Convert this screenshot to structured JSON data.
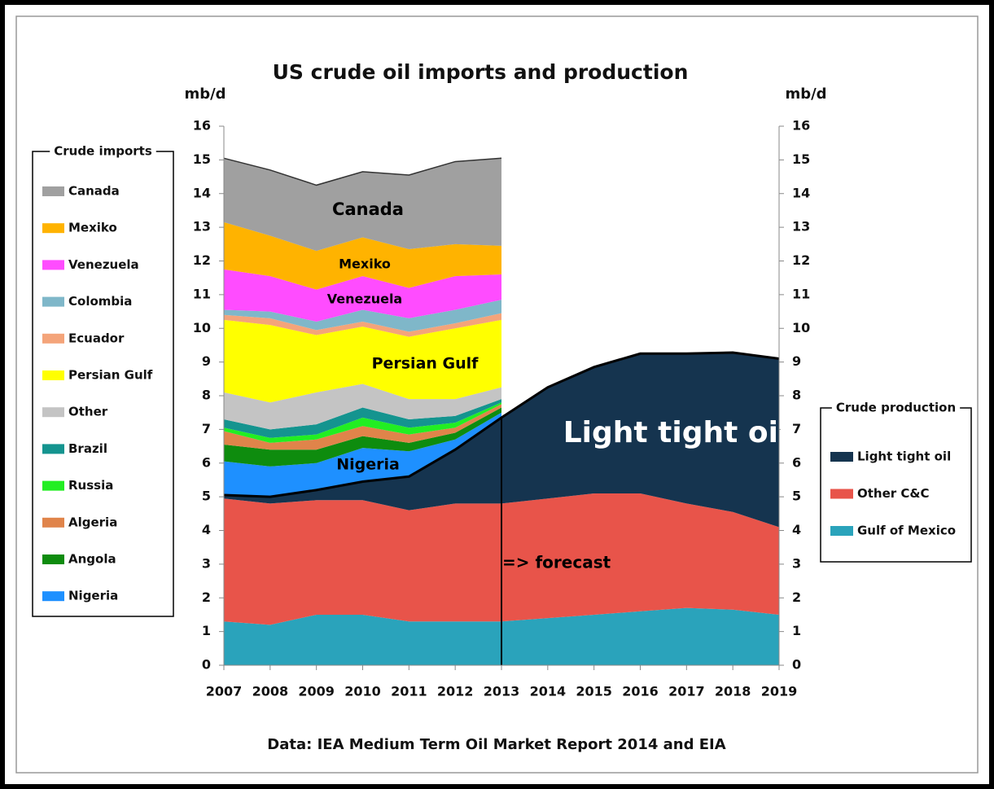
{
  "chart_data": {
    "type": "stacked-area",
    "title": "US crude oil imports and production",
    "y_axis_label": "mb/d",
    "y2_axis_label": "mb/d",
    "source": "Data: IEA Medium Term Oil Market Report 2014 and EIA",
    "categories": [
      "2007",
      "2008",
      "2009",
      "2010",
      "2011",
      "2012",
      "2013",
      "2014",
      "2015",
      "2016",
      "2017",
      "2018",
      "2019"
    ],
    "ylim": [
      0,
      16
    ],
    "yticks": [
      0,
      1,
      2,
      3,
      4,
      5,
      6,
      7,
      8,
      9,
      10,
      11,
      12,
      13,
      14,
      15,
      16
    ],
    "y2lim": [
      0,
      16
    ],
    "y2ticks": [
      0,
      1,
      2,
      3,
      4,
      5,
      6,
      7,
      8,
      9,
      10,
      11,
      12,
      13,
      14,
      15,
      16
    ],
    "series_groups": [
      {
        "title": "Crude production",
        "series": [
          {
            "name": "Gulf of Mexico",
            "color": "#2aa3bb",
            "values": [
              1.3,
              1.2,
              1.5,
              1.5,
              1.3,
              1.3,
              1.3,
              1.4,
              1.5,
              1.6,
              1.7,
              1.65,
              1.5
            ]
          },
          {
            "name": "Other C&C",
            "color": "#e8544a",
            "values": [
              3.65,
              3.6,
              3.4,
              3.4,
              3.3,
              3.5,
              3.5,
              3.55,
              3.6,
              3.5,
              3.1,
              2.9,
              2.6
            ]
          },
          {
            "name": "Light tight oil",
            "color": "#15344f",
            "values": [
              0.1,
              0.2,
              0.3,
              0.55,
              1.0,
              1.6,
              2.55,
              3.3,
              3.75,
              4.15,
              4.45,
              4.73,
              5.0
            ]
          }
        ]
      },
      {
        "title": "Crude imports",
        "series": [
          {
            "name": "Nigeria",
            "color": "#1e90ff",
            "values": [
              1.0,
              0.9,
              0.8,
              1.0,
              0.75,
              0.3,
              0.15,
              null,
              null,
              null,
              null,
              null,
              null
            ]
          },
          {
            "name": "Angola",
            "color": "#0e8c0e",
            "values": [
              0.5,
              0.5,
              0.4,
              0.35,
              0.25,
              0.2,
              0.15,
              null,
              null,
              null,
              null,
              null,
              null
            ]
          },
          {
            "name": "Algeria",
            "color": "#e0844a",
            "values": [
              0.4,
              0.2,
              0.3,
              0.3,
              0.25,
              0.15,
              0.1,
              null,
              null,
              null,
              null,
              null,
              null
            ]
          },
          {
            "name": "Russia",
            "color": "#22ee22",
            "values": [
              0.1,
              0.15,
              0.15,
              0.25,
              0.2,
              0.15,
              0.05,
              null,
              null,
              null,
              null,
              null,
              null
            ]
          },
          {
            "name": "Brazil",
            "color": "#14948f",
            "values": [
              0.25,
              0.25,
              0.3,
              0.3,
              0.25,
              0.2,
              0.1,
              null,
              null,
              null,
              null,
              null,
              null
            ]
          },
          {
            "name": "Other",
            "color": "#c4c4c4",
            "values": [
              0.8,
              0.8,
              0.95,
              0.7,
              0.6,
              0.5,
              0.35,
              null,
              null,
              null,
              null,
              null,
              null
            ]
          },
          {
            "name": "Persian Gulf",
            "color": "#ffff00",
            "values": [
              2.15,
              2.3,
              1.7,
              1.7,
              1.85,
              2.1,
              2.0,
              null,
              null,
              null,
              null,
              null,
              null
            ]
          },
          {
            "name": "Ecuador",
            "color": "#f4a47a",
            "values": [
              0.15,
              0.2,
              0.15,
              0.15,
              0.15,
              0.15,
              0.2,
              null,
              null,
              null,
              null,
              null,
              null
            ]
          },
          {
            "name": "Colombia",
            "color": "#7fb7c9",
            "values": [
              0.15,
              0.2,
              0.25,
              0.35,
              0.4,
              0.4,
              0.4,
              null,
              null,
              null,
              null,
              null,
              null
            ]
          },
          {
            "name": "Venezuela",
            "color": "#ff4cff",
            "values": [
              1.2,
              1.05,
              0.95,
              1.0,
              0.9,
              1.0,
              0.75,
              null,
              null,
              null,
              null,
              null,
              null
            ]
          },
          {
            "name": "Mexiko",
            "color": "#ffb300",
            "values": [
              1.4,
              1.2,
              1.15,
              1.15,
              1.15,
              0.95,
              0.85,
              null,
              null,
              null,
              null,
              null,
              null
            ]
          },
          {
            "name": "Canada",
            "color": "#a0a0a0",
            "values": [
              1.9,
              1.95,
              1.95,
              1.95,
              2.2,
              2.45,
              2.6,
              null,
              null,
              null,
              null,
              null,
              null
            ]
          }
        ]
      }
    ],
    "annotations": [
      "Canada",
      "Mexiko",
      "Venezuela",
      "Persian Gulf",
      "Nigeria",
      "Light tight oil",
      "=> forecast"
    ]
  }
}
